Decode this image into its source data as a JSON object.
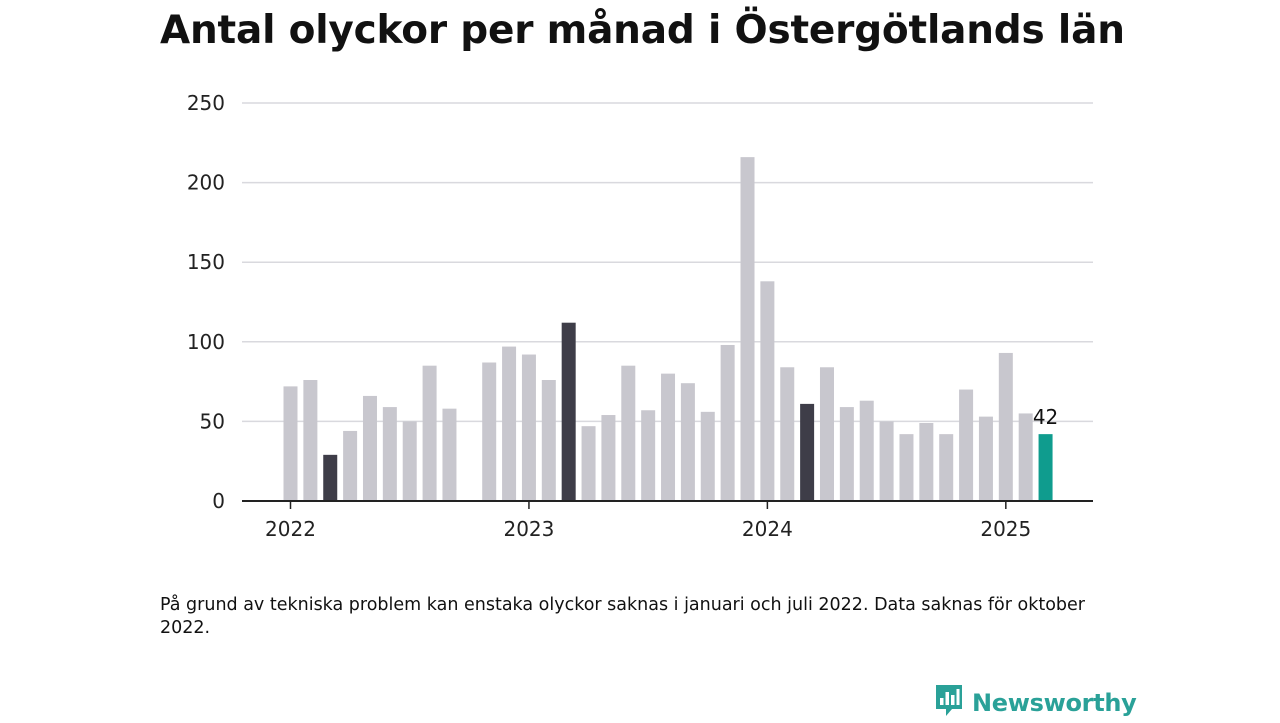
{
  "chart_data": {
    "type": "bar",
    "title": "Antal olyckor per månad i Östergötlands län",
    "xlabel": "",
    "ylabel": "",
    "ylim": [
      0,
      250
    ],
    "y_ticks": [
      0,
      50,
      100,
      150,
      200,
      250
    ],
    "x_ticks": [
      "2022",
      "2023",
      "2024",
      "2025"
    ],
    "grid": true,
    "categories": [
      "2022-01",
      "2022-02",
      "2022-03",
      "2022-04",
      "2022-05",
      "2022-06",
      "2022-07",
      "2022-08",
      "2022-09",
      "2022-10",
      "2022-11",
      "2022-12",
      "2023-01",
      "2023-02",
      "2023-03",
      "2023-04",
      "2023-05",
      "2023-06",
      "2023-07",
      "2023-08",
      "2023-09",
      "2023-10",
      "2023-11",
      "2023-12",
      "2024-01",
      "2024-02",
      "2024-03",
      "2024-04",
      "2024-05",
      "2024-06",
      "2024-07",
      "2024-08",
      "2024-09",
      "2024-10",
      "2024-11",
      "2024-12",
      "2025-01",
      "2025-02",
      "2025-03"
    ],
    "values": [
      72,
      76,
      29,
      44,
      66,
      59,
      50,
      85,
      58,
      null,
      87,
      97,
      92,
      76,
      112,
      47,
      54,
      85,
      57,
      80,
      74,
      56,
      98,
      216,
      138,
      84,
      61,
      84,
      59,
      63,
      50,
      42,
      49,
      42,
      70,
      53,
      93,
      55,
      42
    ],
    "highlighted_months": [
      "2022-03",
      "2023-03",
      "2024-03"
    ],
    "current_month": "2025-03",
    "annotations": [
      {
        "category": "2025-03",
        "text": "42"
      }
    ],
    "colors": {
      "default": "#c8c7ce",
      "highlight": "#3e3d48",
      "current": "#0f9c8e",
      "grid": "#d9d9de",
      "axis": "#222222"
    }
  },
  "footnote": "På grund av tekniska problem kan enstaka olyckor saknas i januari och juli 2022. Data saknas för oktober 2022.",
  "brand": {
    "name": "Newsworthy",
    "icon": "newsworthy-logo-icon",
    "color": "#2aa198"
  }
}
